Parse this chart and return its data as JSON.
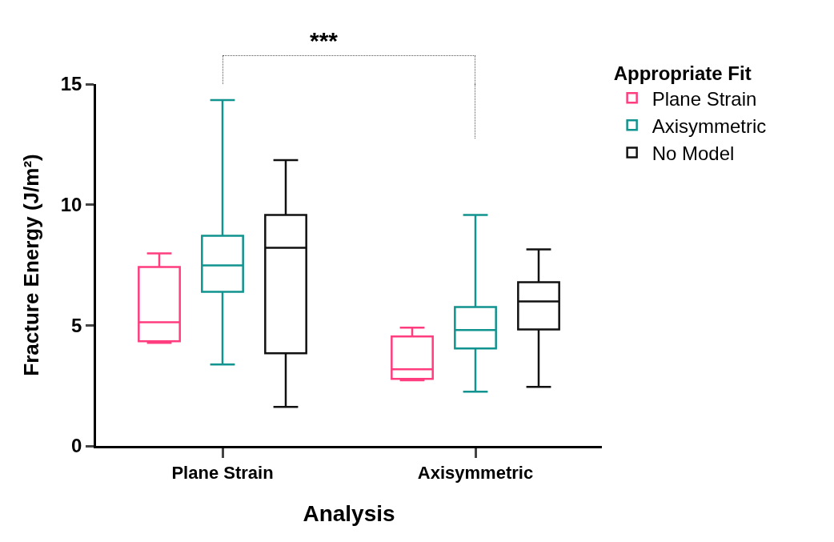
{
  "chart_data": {
    "type": "box",
    "xlabel": "Analysis",
    "ylabel": "Fracture Energy (J/m²)",
    "legend_title": "Appropriate Fit",
    "legend": "top right",
    "grid": false,
    "categories": [
      "Plane Strain",
      "Axisymmetric"
    ],
    "ylim": [
      0,
      15
    ],
    "yticks": [
      0,
      5,
      10,
      15
    ],
    "annotations": [
      "***"
    ],
    "series": [
      {
        "name": "Plane Strain",
        "color": "#ff3d7f",
        "boxes": [
          {
            "low": 4.27,
            "q1": 4.34,
            "median": 5.13,
            "q3": 7.42,
            "high": 7.98
          },
          {
            "low": 2.72,
            "q1": 2.78,
            "median": 3.18,
            "q3": 4.54,
            "high": 4.9
          }
        ]
      },
      {
        "name": "Axisymmetric",
        "color": "#11938f",
        "boxes": [
          {
            "low": 3.38,
            "q1": 6.39,
            "median": 7.48,
            "q3": 8.71,
            "high": 14.34
          },
          {
            "low": 2.25,
            "q1": 4.04,
            "median": 4.8,
            "q3": 5.76,
            "high": 9.57
          }
        ]
      },
      {
        "name": "No Model",
        "color": "#111111",
        "boxes": [
          {
            "low": 1.62,
            "q1": 3.84,
            "median": 8.21,
            "q3": 9.57,
            "high": 11.85
          },
          {
            "low": 2.45,
            "q1": 4.83,
            "median": 5.99,
            "q3": 6.79,
            "high": 8.15
          }
        ]
      }
    ]
  }
}
